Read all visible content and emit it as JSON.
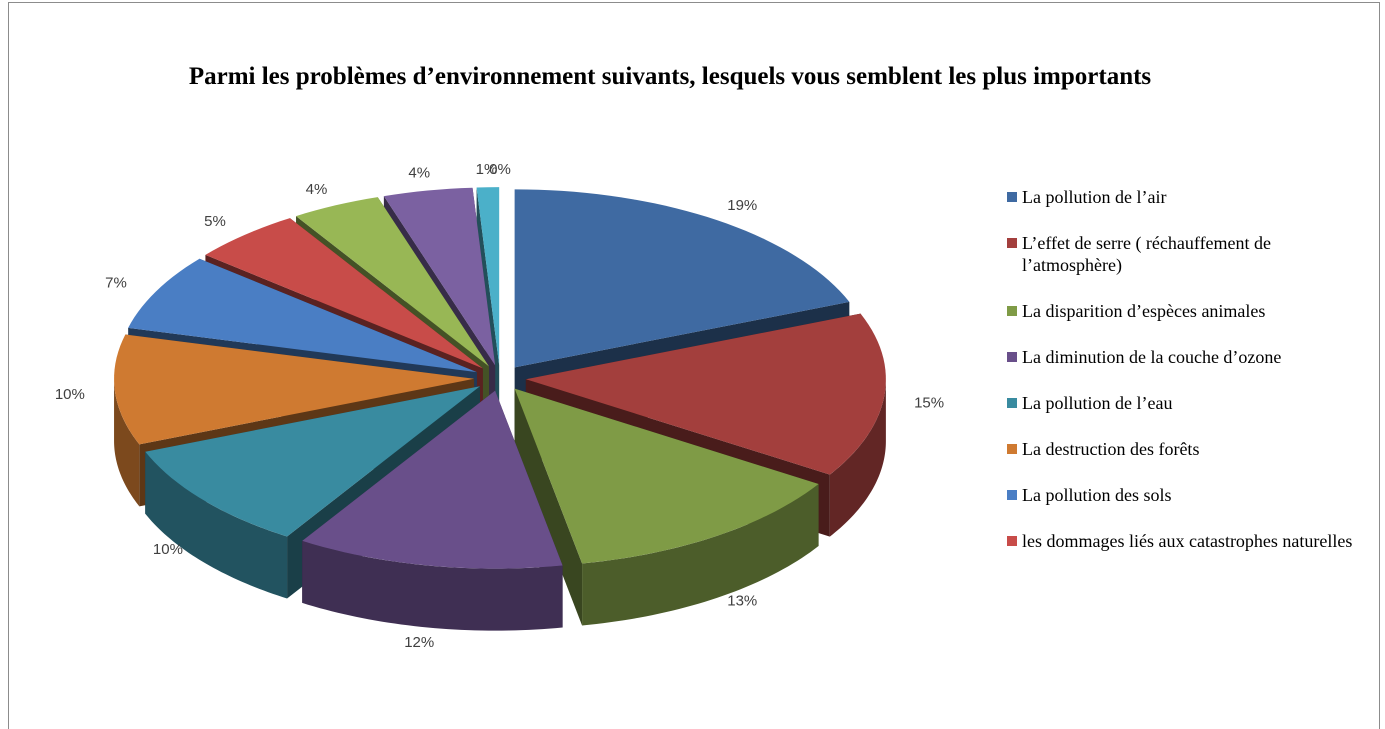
{
  "chart_data": {
    "type": "pie3d",
    "title": "Parmi les problèmes d’environnement suivants, lesquels vous semblent les plus importants",
    "categories": [
      "La pollution de l’air",
      "L’effet de serre ( réchauffement de l’atmosphère)",
      "La disparition d’espèces animales",
      "La diminution de la couche d’ozone",
      "La pollution de l’eau",
      "La destruction des forêts",
      "La pollution des sols",
      "les dommages liés aux catastrophes naturelles",
      null,
      null,
      null,
      null
    ],
    "values": [
      19,
      15,
      13,
      12,
      10,
      10,
      7,
      5,
      4,
      4,
      1,
      0
    ],
    "value_labels": [
      "19%",
      "15%",
      "13%",
      "12%",
      "10%",
      "10%",
      "7%",
      "5%",
      "4%",
      "4%",
      "1%",
      "0%"
    ],
    "colors": [
      "#3f6aa2",
      "#a33f3d",
      "#7f9b46",
      "#694f8a",
      "#398ba0",
      "#cf7a31",
      "#4a7ec4",
      "#c84c49",
      "#98b755",
      "#7b61a1",
      "#4bb0c9",
      "#f79646"
    ],
    "legend": "right"
  }
}
